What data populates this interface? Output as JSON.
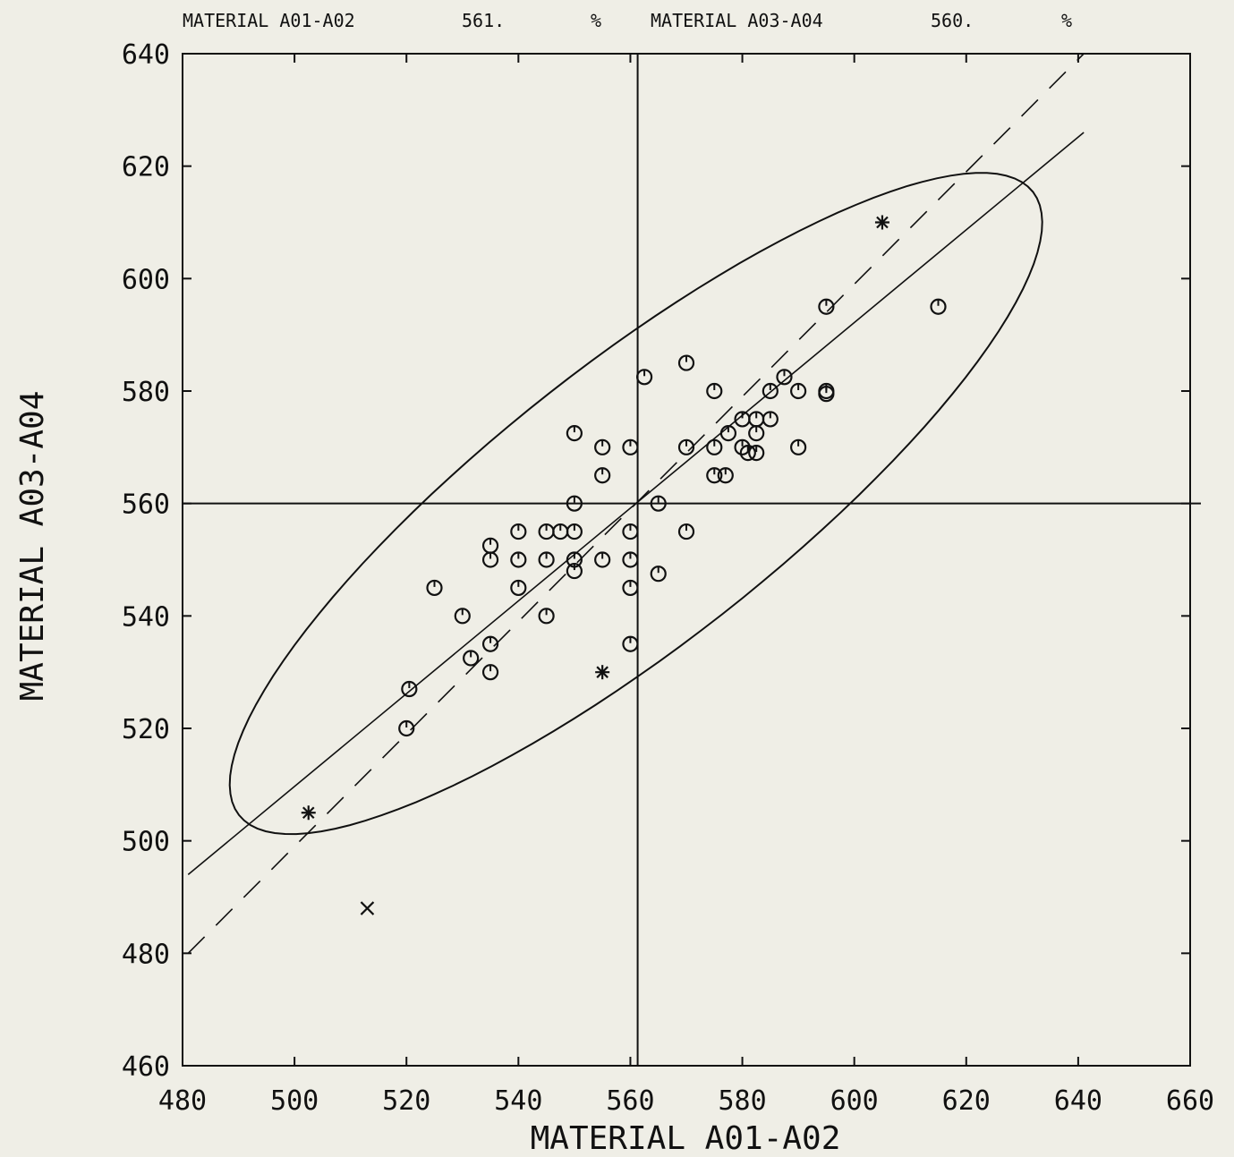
{
  "chart_data": {
    "type": "scatter",
    "title": "",
    "header": {
      "x_name": "MATERIAL A01-A02",
      "x_median": "561.",
      "x_unit": "%",
      "y_name": "MATERIAL A03-A04",
      "y_median": "560.",
      "y_unit": "%"
    },
    "xlabel": "MATERIAL A01-A02",
    "ylabel": "MATERIAL A03-A04",
    "xlim": [
      480,
      660
    ],
    "ylim": [
      460,
      640
    ],
    "xticks": [
      "480",
      "500",
      "520",
      "540",
      "560",
      "580",
      "600",
      "620",
      "640",
      "660"
    ],
    "yticks": [
      "460",
      "480",
      "500",
      "520",
      "540",
      "560",
      "580",
      "600",
      "620",
      "640"
    ],
    "median_lines": {
      "x": 561.3,
      "y": 560
    },
    "reference_lines": {
      "dashed_45deg": [
        [
          481,
          480
        ],
        [
          641,
          640
        ]
      ],
      "solid_fit": [
        [
          481,
          494
        ],
        [
          641,
          626
        ]
      ]
    },
    "ellipse": {
      "center": [
        561,
        560
      ],
      "semi_major": 90,
      "semi_minor": 25,
      "angle_deg": 38,
      "style": "solid"
    },
    "grid": false,
    "legend": "none",
    "series": [
      {
        "marker": "circle",
        "points": [
          [
            615,
            595
          ],
          [
            595,
            595
          ],
          [
            570,
            585
          ],
          [
            562.5,
            582.5
          ],
          [
            587.5,
            582.5
          ],
          [
            575,
            580
          ],
          [
            585,
            580
          ],
          [
            590,
            580
          ],
          [
            595,
            580
          ],
          [
            595,
            579.5
          ],
          [
            580,
            575
          ],
          [
            582.5,
            575
          ],
          [
            585,
            575
          ],
          [
            550,
            572.5
          ],
          [
            577.5,
            572.5
          ],
          [
            582.5,
            572.5
          ],
          [
            555,
            570
          ],
          [
            560,
            570
          ],
          [
            570,
            570
          ],
          [
            575,
            570
          ],
          [
            580,
            570
          ],
          [
            581,
            569
          ],
          [
            582.5,
            569
          ],
          [
            590,
            570
          ],
          [
            555,
            565
          ],
          [
            575,
            565
          ],
          [
            577,
            565
          ],
          [
            550,
            560
          ],
          [
            565,
            560
          ],
          [
            535,
            552.5
          ],
          [
            540,
            555
          ],
          [
            545,
            555
          ],
          [
            547.5,
            555
          ],
          [
            550,
            555
          ],
          [
            560,
            555
          ],
          [
            570,
            555
          ],
          [
            535,
            550
          ],
          [
            540,
            550
          ],
          [
            545,
            550
          ],
          [
            550,
            550
          ],
          [
            555,
            550
          ],
          [
            560,
            550
          ],
          [
            550,
            548
          ],
          [
            565,
            547.5
          ],
          [
            525,
            545
          ],
          [
            540,
            545
          ],
          [
            560,
            545
          ],
          [
            530,
            540
          ],
          [
            545,
            540
          ],
          [
            535,
            535
          ],
          [
            560,
            535
          ],
          [
            531.5,
            532.5
          ],
          [
            535,
            530
          ],
          [
            520.5,
            527
          ],
          [
            520,
            520
          ]
        ]
      },
      {
        "marker": "asterisk",
        "points": [
          [
            605,
            610
          ],
          [
            555,
            530
          ],
          [
            502.5,
            505
          ]
        ]
      },
      {
        "marker": "x",
        "points": [
          [
            513,
            488
          ]
        ]
      }
    ]
  }
}
